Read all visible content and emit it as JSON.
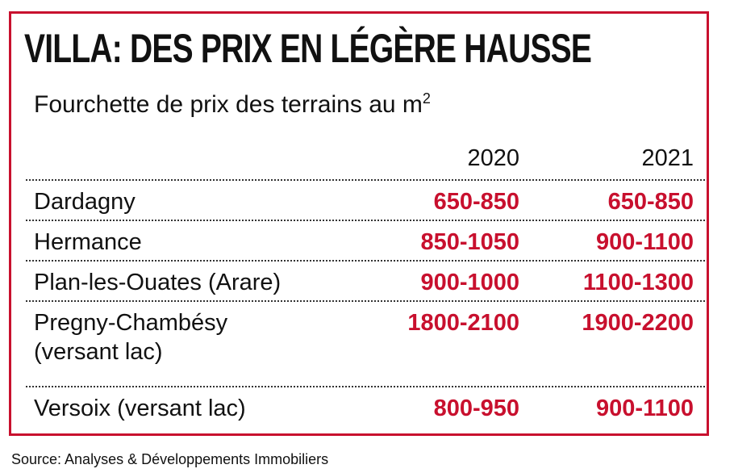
{
  "colors": {
    "accent": "#c8102e",
    "text": "#111111",
    "background": "#ffffff"
  },
  "chart_data": {
    "type": "table",
    "title": "VILLA: DES PRIX EN LÉGÈRE HAUSSE",
    "subtitle_main": "Fourchette de prix des terrains au m",
    "subtitle_superscript": "2",
    "columns": [
      "2020",
      "2021"
    ],
    "rows": [
      {
        "name": "Dardagny",
        "name_line2": "",
        "v2020": "650-850",
        "v2021": "650-850"
      },
      {
        "name": "Hermance",
        "name_line2": "",
        "v2020": "850-1050",
        "v2021": "900-1100"
      },
      {
        "name": "Plan-les-Ouates (Arare)",
        "name_line2": "",
        "v2020": "900-1000",
        "v2021": "1100-1300"
      },
      {
        "name": "Pregny-Chambésy",
        "name_line2": "(versant lac)",
        "v2020": "1800-2100",
        "v2021": "1900-2200"
      },
      {
        "name": "Versoix (versant lac)",
        "name_line2": "",
        "v2020": "800-950",
        "v2021": "900-1100"
      }
    ],
    "source": "Source: Analyses & Développements Immobiliers"
  }
}
